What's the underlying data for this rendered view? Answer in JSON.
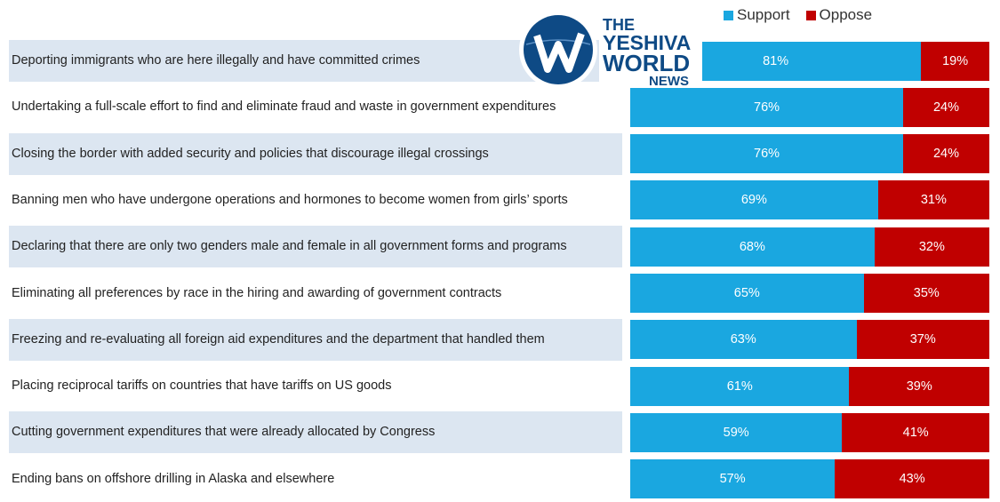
{
  "colors": {
    "support": "#1aa7e0",
    "oppose": "#c00000",
    "row_band": "#dce6f1",
    "logo_blue": "#0e4a85"
  },
  "logo": {
    "line1": "THE",
    "line2": "YESHIVA",
    "line3": "WORLD",
    "line4": "NEWS",
    "icon": "yw-globe-icon"
  },
  "chart_data": {
    "type": "bar",
    "orientation": "horizontal",
    "stacked": true,
    "percent": true,
    "legend_position": "top-right",
    "categories": [
      "Deporting immigrants who are here illegally and have committed crimes",
      "Undertaking a full-scale effort to find and eliminate fraud and waste in government expenditures",
      "Closing the border with added security and policies that discourage illegal crossings",
      "Banning men who have undergone operations and hormones to become women from girls’ sports",
      "Declaring that there are only two genders male and female in all government forms and programs",
      "Eliminating all preferences by race in the hiring and awarding of government contracts",
      "Freezing and re-evaluating all foreign aid expenditures and the department that handled them",
      "Placing reciprocal tariffs on countries that have tariffs on US goods",
      "Cutting government expenditures that were already allocated by Congress",
      "Ending bans on offshore drilling in Alaska and elsewhere"
    ],
    "series": [
      {
        "name": "Support",
        "values": [
          81,
          76,
          76,
          69,
          68,
          65,
          63,
          61,
          59,
          57
        ],
        "labels": [
          "81%",
          "76%",
          "76%",
          "69%",
          "68%",
          "65%",
          "63%",
          "61%",
          "59%",
          "57%"
        ]
      },
      {
        "name": "Oppose",
        "values": [
          19,
          24,
          24,
          31,
          32,
          35,
          37,
          39,
          41,
          43
        ],
        "labels": [
          "19%",
          "24%",
          "24%",
          "31%",
          "32%",
          "35%",
          "37%",
          "39%",
          "41%",
          "43%"
        ]
      }
    ]
  }
}
